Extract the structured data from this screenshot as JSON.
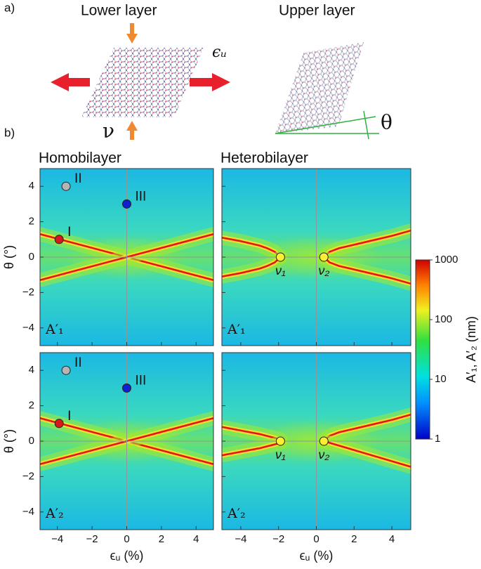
{
  "schematic": {
    "panel_label": "a)",
    "lower_layer": "Lower layer",
    "upper_layer": "Upper layer",
    "strain_symbol": "ϵᵤ",
    "poisson_symbol": "ν",
    "angle_symbol": "θ"
  },
  "panel_label_b": "b)",
  "colorbar": {
    "label": "A′₁, A′₂ (nm)",
    "scale": "log",
    "lim": [
      1,
      1000
    ],
    "ticks": [
      1,
      10,
      100,
      1000
    ]
  },
  "chart_data": [
    {
      "type": "heatmap",
      "title": "Homobilayer",
      "annotation": "A′₁",
      "ylabel": "θ (°)",
      "xlim": [
        -5,
        5
      ],
      "ylim": [
        -5,
        5
      ],
      "xticks": [
        {
          "value": -4,
          "label": "−4"
        },
        {
          "value": -2,
          "label": "−2"
        },
        0,
        2,
        4
      ],
      "yticks": [
        {
          "value": -4,
          "label": "−4"
        },
        {
          "value": -2,
          "label": "−2"
        },
        0,
        2,
        4
      ],
      "ridge_color": "#e3161c",
      "ridges": [
        {
          "x": [
            -5,
            5
          ],
          "y": [
            1.3,
            -1.3
          ]
        },
        {
          "x": [
            -5,
            5
          ],
          "y": [
            -1.3,
            1.3
          ]
        }
      ],
      "points": [
        {
          "label": "I",
          "x": -3.9,
          "y": 1,
          "color": "#d7191c"
        },
        {
          "label": "II",
          "x": -3.5,
          "y": 4,
          "color": "#b5b5b5"
        },
        {
          "label": "III",
          "x": 0,
          "y": 3,
          "color": "#1020d0"
        }
      ]
    },
    {
      "type": "heatmap",
      "title": "Heterobilayer",
      "annotation": "A′₁",
      "xlim": [
        -5,
        5
      ],
      "ylim": [
        -5,
        5
      ],
      "xticks": [
        {
          "value": -4,
          "label": "−4"
        },
        {
          "value": -2,
          "label": "−2"
        },
        0,
        2,
        4
      ],
      "yticks": [
        {
          "value": -4,
          "label": "−4"
        },
        {
          "value": -2,
          "label": "−2"
        },
        0,
        2,
        4
      ],
      "ridge_color": "#e3161c",
      "ridges": [
        {
          "x": [
            -1.9,
            -2.2,
            -2.6,
            -3,
            -4,
            -5
          ],
          "y": [
            0,
            0.3,
            0.5,
            0.65,
            0.9,
            1.1
          ]
        },
        {
          "x": [
            -1.9,
            -2.2,
            -2.6,
            -3,
            -4,
            -5
          ],
          "y": [
            0,
            -0.3,
            -0.5,
            -0.65,
            -0.9,
            -1.1
          ]
        },
        {
          "x": [
            0.4,
            0.7,
            1.2,
            2,
            3,
            4,
            5
          ],
          "y": [
            0,
            0.3,
            0.5,
            0.7,
            0.95,
            1.2,
            1.5
          ]
        },
        {
          "x": [
            0.4,
            0.7,
            1.2,
            2,
            3,
            4,
            5
          ],
          "y": [
            0,
            -0.3,
            -0.5,
            -0.7,
            -0.95,
            -1.2,
            -1.5
          ]
        }
      ],
      "points": [
        {
          "label": "ν₁",
          "x": -1.9,
          "y": 0,
          "color": "#ffee33"
        },
        {
          "label": "ν₂",
          "x": 0.4,
          "y": 0,
          "color": "#ffee33"
        }
      ]
    },
    {
      "type": "heatmap",
      "annotation": "A′₂",
      "ylabel": "θ (°)",
      "xlabel": "ϵᵤ (%)",
      "xlim": [
        -5,
        5
      ],
      "ylim": [
        -5,
        5
      ],
      "xticks": [
        {
          "value": -4,
          "label": "−4"
        },
        {
          "value": -2,
          "label": "−2"
        },
        0,
        2,
        4
      ],
      "yticks": [
        {
          "value": -4,
          "label": "−4"
        },
        {
          "value": -2,
          "label": "−2"
        },
        0,
        2,
        4
      ],
      "ridge_color": "#e3161c",
      "ridges": [
        {
          "x": [
            -5,
            5
          ],
          "y": [
            1.3,
            -1.3
          ]
        },
        {
          "x": [
            -5,
            5
          ],
          "y": [
            -1.3,
            1.3
          ]
        }
      ],
      "points": [
        {
          "label": "I",
          "x": -3.9,
          "y": 1,
          "color": "#d7191c"
        },
        {
          "label": "II",
          "x": -3.5,
          "y": 4,
          "color": "#b5b5b5"
        },
        {
          "label": "III",
          "x": 0,
          "y": 3,
          "color": "#1020d0"
        }
      ]
    },
    {
      "type": "heatmap",
      "annotation": "A′₂",
      "xlabel": "ϵᵤ (%)",
      "xlim": [
        -5,
        5
      ],
      "ylim": [
        -5,
        5
      ],
      "xticks": [
        {
          "value": -4,
          "label": "−4"
        },
        {
          "value": -2,
          "label": "−2"
        },
        0,
        2,
        4
      ],
      "yticks": [
        {
          "value": -4,
          "label": "−4"
        },
        {
          "value": -2,
          "label": "−2"
        },
        0,
        2,
        4
      ],
      "ridge_color": "#e3161c",
      "ridges": [
        {
          "x": [
            -1.9,
            -3,
            -4,
            -5
          ],
          "y": [
            0.1,
            0.4,
            0.6,
            0.8
          ]
        },
        {
          "x": [
            -1.9,
            -3,
            -4,
            -5
          ],
          "y": [
            -0.1,
            -0.4,
            -0.6,
            -0.8
          ]
        },
        {
          "x": [
            0.4,
            0.7,
            1.2,
            2,
            3,
            4,
            5
          ],
          "y": [
            0,
            0.3,
            0.5,
            0.7,
            0.95,
            1.2,
            1.5
          ]
        },
        {
          "x": [
            0.4,
            5
          ],
          "y": [
            0,
            -1.45
          ]
        }
      ],
      "points": [
        {
          "label": "ν₁",
          "x": -1.9,
          "y": 0,
          "color": "#ffee33"
        },
        {
          "label": "ν₂",
          "x": 0.4,
          "y": 0,
          "color": "#ffee33"
        }
      ]
    }
  ]
}
